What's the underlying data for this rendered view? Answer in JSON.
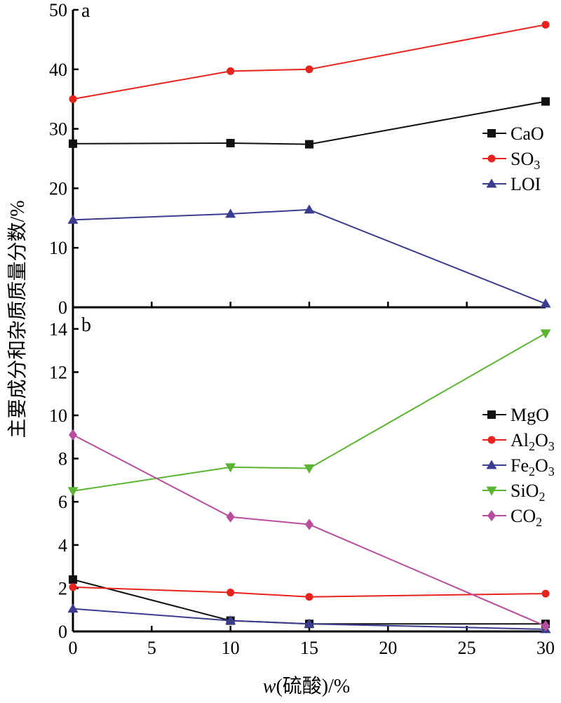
{
  "figure": {
    "ylabel": "主要成分和杂质质量分数/%",
    "xlabel": {
      "symbol": "w",
      "rest": "(硫酸)/%"
    }
  },
  "chart_data": [
    {
      "panel": "a",
      "type": "line",
      "x": [
        0,
        10,
        15,
        30
      ],
      "xlim": [
        0,
        30
      ],
      "xticks": [
        0,
        5,
        10,
        15,
        20,
        25,
        30
      ],
      "ylim": [
        0,
        50
      ],
      "yticks": [
        0,
        10,
        20,
        30,
        40,
        50
      ],
      "show_xticklabels": false,
      "legend": "right",
      "series": [
        {
          "name": "CaO",
          "color": "#111111",
          "marker": "square",
          "values": [
            27.5,
            27.6,
            27.4,
            34.6
          ]
        },
        {
          "name": "SO",
          "name_subscript": "3",
          "color": "#e8231e",
          "marker": "circle",
          "values": [
            35.0,
            39.7,
            40.0,
            47.5
          ]
        },
        {
          "name": "LOI",
          "color": "#3b3c8f",
          "marker": "triangle-up",
          "values": [
            14.7,
            15.7,
            16.4,
            0.6
          ]
        }
      ]
    },
    {
      "panel": "b",
      "type": "line",
      "x": [
        0,
        10,
        15,
        30
      ],
      "xlim": [
        0,
        30
      ],
      "xticks": [
        0,
        5,
        10,
        15,
        20,
        25,
        30
      ],
      "ylim": [
        0,
        15
      ],
      "yticks": [
        0,
        2,
        4,
        6,
        8,
        10,
        12,
        14
      ],
      "show_xticklabels": true,
      "legend": "right",
      "series": [
        {
          "name": "MgO",
          "color": "#111111",
          "marker": "square",
          "values": [
            2.4,
            0.5,
            0.35,
            0.35
          ]
        },
        {
          "name": "Al",
          "name_subscript": "2",
          "name_rest": "O",
          "name_subscript2": "3",
          "color": "#e8231e",
          "marker": "circle",
          "values": [
            2.05,
            1.8,
            1.6,
            1.75
          ]
        },
        {
          "name": "Fe",
          "name_subscript": "2",
          "name_rest": "O",
          "name_subscript2": "3",
          "color": "#3b3c8f",
          "marker": "triangle-up",
          "values": [
            1.05,
            0.5,
            0.35,
            0.1
          ]
        },
        {
          "name": "SiO",
          "name_subscript": "2",
          "color": "#5bb533",
          "marker": "triangle-down",
          "values": [
            6.5,
            7.6,
            7.55,
            13.8
          ]
        },
        {
          "name": "CO",
          "name_subscript": "2",
          "color": "#b84d9e",
          "marker": "diamond",
          "values": [
            9.1,
            5.3,
            4.95,
            0.25
          ]
        }
      ]
    }
  ]
}
